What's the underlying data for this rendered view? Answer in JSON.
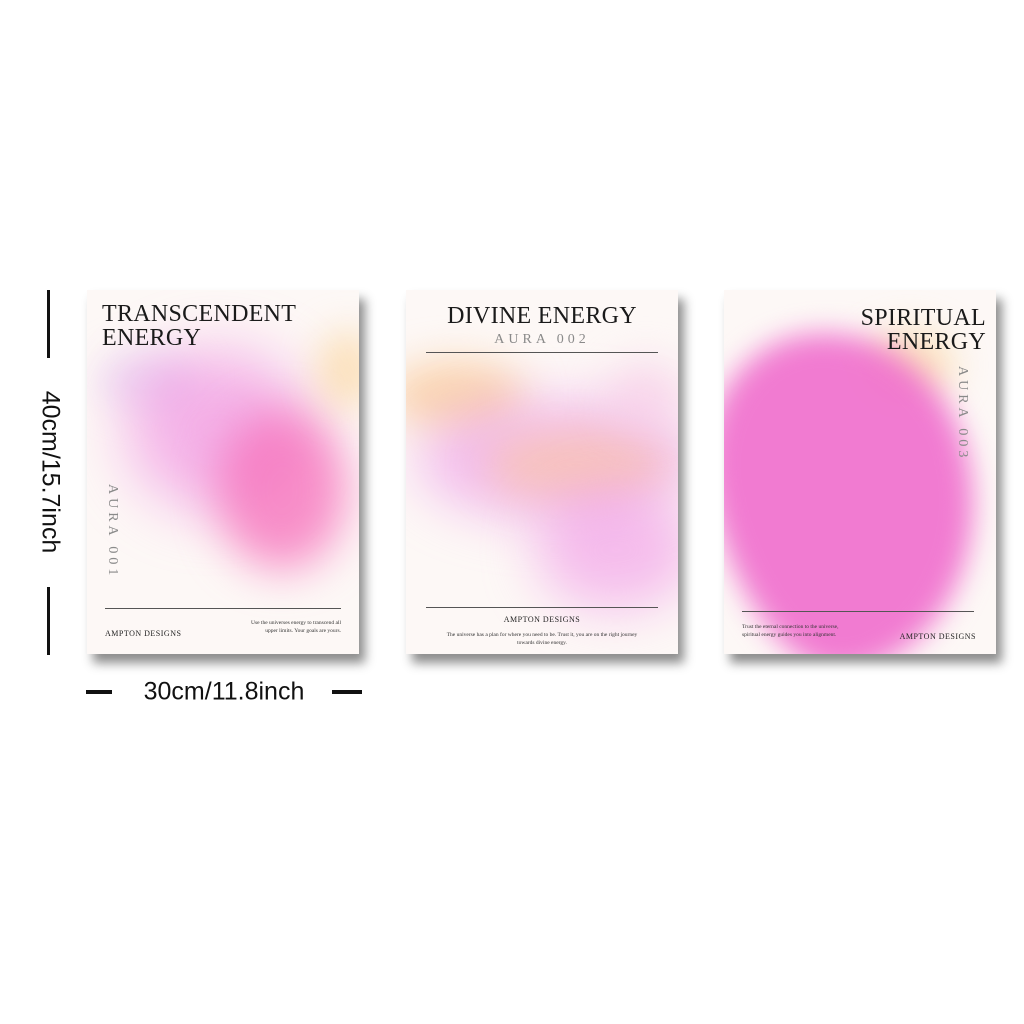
{
  "dimensions": {
    "height_label": "40cm/15.7inch",
    "width_label": "30cm/11.8inch"
  },
  "posters": [
    {
      "title_line1": "TRANSCENDENT",
      "title_line2": "ENERGY",
      "aura": "AURA 001",
      "brand": "AMPTON DESIGNS",
      "blurb": "Use the universes energy to transcend all upper limits. Your goals are yours."
    },
    {
      "title_line1": "DIVINE ENERGY",
      "aura": "AURA 002",
      "brand": "AMPTON DESIGNS",
      "blurb": "The universe has a plan for where you need to be. Trust it, you are on the right journey towards divine energy."
    },
    {
      "title_line1": "SPIRITUAL",
      "title_line2": "ENERGY",
      "aura": "AURA 003",
      "brand": "AMPTON DESIGNS",
      "blurb": "Trust the eternal connection to the universe, spiritual energy guides you into alignment."
    }
  ],
  "colors": {
    "poster_bg": "#fdf8f6",
    "pink": "#f06ecd",
    "peach": "#fad296"
  }
}
